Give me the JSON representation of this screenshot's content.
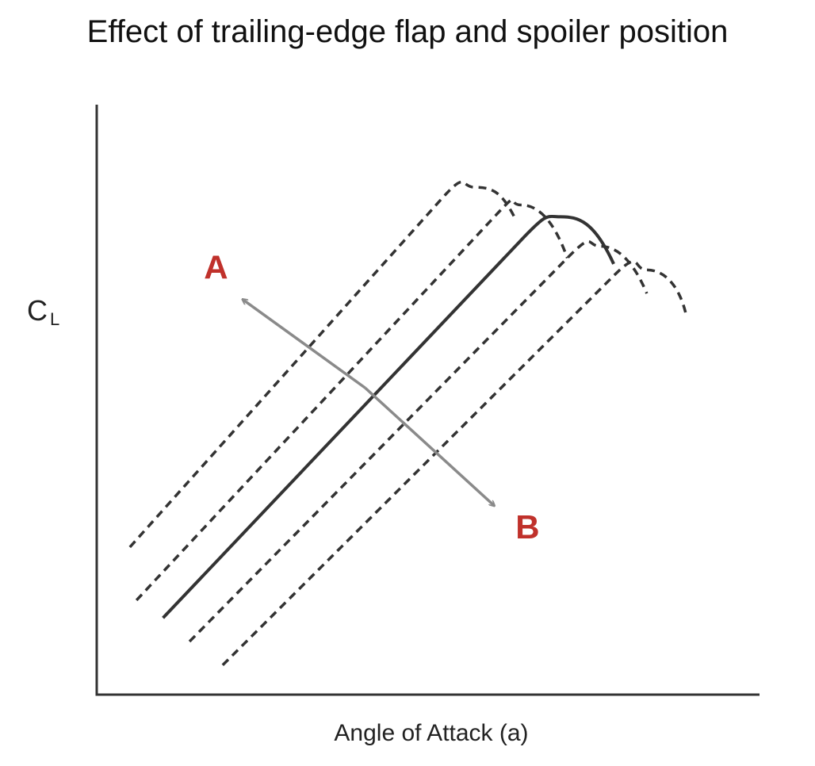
{
  "colors": {
    "axis": "#333333",
    "curve": "#333333",
    "arrow": "#8a8a8a",
    "annotation": "#c0312b"
  },
  "chart_data": {
    "type": "line",
    "title": "Effect of trailing-edge flap and spoiler position",
    "xlabel": "Angle of Attack (a)",
    "ylabel": {
      "main": "C",
      "sub": "L"
    },
    "xlim": [
      0,
      100
    ],
    "ylim": [
      0,
      100
    ],
    "grid": false,
    "legend": "none",
    "series": [
      {
        "style": "dashed",
        "points": [
          [
            5,
            25
          ],
          [
            52,
            84
          ],
          [
            57,
            86
          ],
          [
            61,
            84
          ],
          [
            63,
            81
          ]
        ]
      },
      {
        "style": "dashed",
        "points": [
          [
            6,
            16
          ],
          [
            60,
            81
          ],
          [
            64,
            83
          ],
          [
            69,
            79
          ],
          [
            71,
            74
          ]
        ]
      },
      {
        "style": "solid",
        "points": [
          [
            10,
            13
          ],
          [
            64,
            77
          ],
          [
            70,
            81
          ],
          [
            75,
            79
          ],
          [
            78,
            73
          ]
        ]
      },
      {
        "style": "dashed",
        "points": [
          [
            14,
            9
          ],
          [
            71,
            74
          ],
          [
            76,
            76
          ],
          [
            81,
            72
          ],
          [
            83,
            68
          ]
        ]
      },
      {
        "style": "dashed",
        "points": [
          [
            19,
            5
          ],
          [
            78,
            71
          ],
          [
            83,
            72
          ],
          [
            88,
            68
          ],
          [
            89,
            64
          ]
        ]
      }
    ],
    "annotations": [
      {
        "text": "A",
        "x": 18,
        "y": 72
      },
      {
        "text": "B",
        "x": 65,
        "y": 28
      }
    ],
    "arrow": {
      "from": [
        40.5,
        52
      ],
      "heads": [
        [
          22,
          67
        ],
        [
          60,
          32
        ]
      ]
    }
  }
}
